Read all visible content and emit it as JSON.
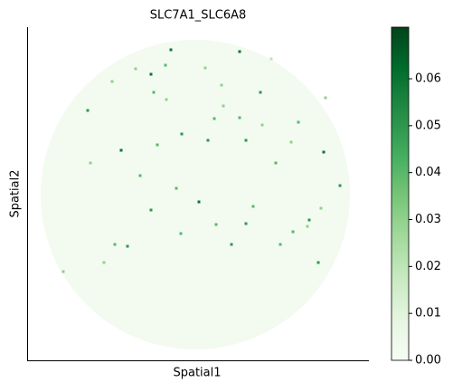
{
  "chart_data": {
    "type": "scatter",
    "title": "SLC7A1_SLC6A8",
    "x_label": "Spatial1",
    "y_label": "Spatial2",
    "xlim": [
      0,
      378
    ],
    "ylim": [
      0,
      368
    ],
    "colormap": [
      "#f7fcf5",
      "#e5f5e0",
      "#c7e9c0",
      "#a1d99b",
      "#74c476",
      "#41ab5d",
      "#238b45",
      "#006d2c",
      "#00441b"
    ],
    "clim": [
      0,
      0.071
    ],
    "cticks": [
      {
        "value": 0,
        "label": "0.00"
      },
      {
        "value": 0.01,
        "label": "0.01"
      },
      {
        "value": 0.02,
        "label": "0.02"
      },
      {
        "value": 0.03,
        "label": "0.03"
      },
      {
        "value": 0.04,
        "label": "0.04"
      },
      {
        "value": 0.05,
        "label": "0.05"
      },
      {
        "value": 0.06,
        "label": "0.06"
      }
    ],
    "x": [
      159,
      137,
      235,
      153,
      67,
      104,
      171,
      190,
      242,
      258,
      328,
      346,
      312,
      209,
      242,
      226,
      111,
      97,
      322,
      294,
      170,
      137,
      125,
      207,
      144,
      260,
      300,
      217,
      154,
      94,
      330,
      275,
      120,
      140,
      280,
      310,
      70,
      85,
      40,
      200,
      235,
      292,
      250,
      197,
      270,
      325,
      165,
      215
    ],
    "y": [
      343,
      316,
      341,
      326,
      276,
      232,
      250,
      175,
      243,
      296,
      230,
      193,
      155,
      150,
      151,
      128,
      126,
      128,
      108,
      142,
      140,
      166,
      204,
      267,
      238,
      260,
      263,
      281,
      288,
      308,
      290,
      218,
      322,
      296,
      128,
      148,
      218,
      108,
      98,
      243,
      268,
      241,
      170,
      323,
      333,
      168,
      190,
      304
    ],
    "values": [
      0.06,
      0.06,
      0.06,
      0.04,
      0.05,
      0.06,
      0.05,
      0.06,
      0.05,
      0.05,
      0.06,
      0.05,
      0.05,
      0.04,
      0.05,
      0.05,
      0.05,
      0.04,
      0.05,
      0.04,
      0.04,
      0.05,
      0.04,
      0.04,
      0.04,
      0.03,
      0.04,
      0.03,
      0.03,
      0.03,
      0.03,
      0.04,
      0.03,
      0.04,
      0.04,
      0.03,
      0.03,
      0.03,
      0.03,
      0.05,
      0.04,
      0.03,
      0.04,
      0.03,
      0.02,
      0.03,
      0.04,
      0.03
    ]
  }
}
